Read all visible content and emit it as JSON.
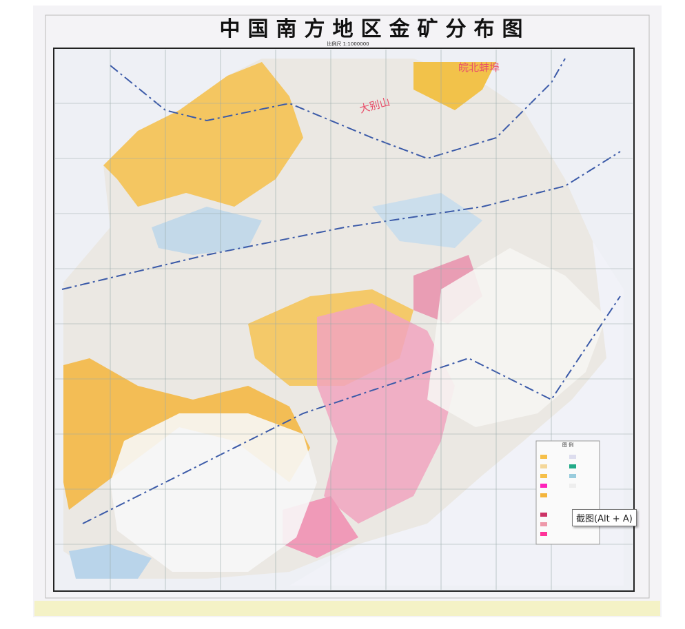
{
  "header": {
    "title": "中国南方地区金矿分布图",
    "scale": "比例尺 1:1000000"
  },
  "map_labels": [
    "皖北蚌埠",
    "大别山"
  ],
  "legend": {
    "title": "图 例"
  },
  "tooltip": "截图(Alt + A)"
}
